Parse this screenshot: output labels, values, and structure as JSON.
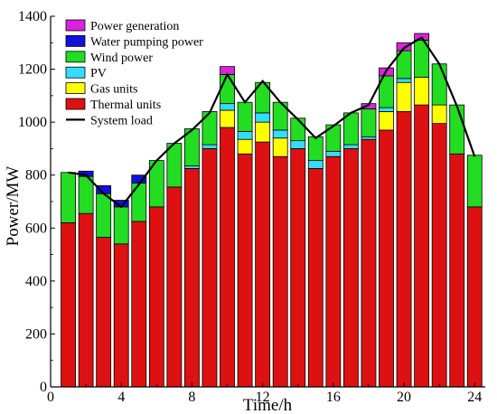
{
  "chart_data": {
    "type": "bar",
    "stacked": true,
    "xlabel": "Time/h",
    "ylabel": "Power/MW",
    "xlim": [
      0,
      24.6
    ],
    "ylim": [
      0,
      1400
    ],
    "x_ticks": [
      0,
      4,
      8,
      12,
      16,
      20,
      24
    ],
    "y_ticks": [
      0,
      200,
      400,
      600,
      800,
      1000,
      1200,
      1400
    ],
    "grid": false,
    "legend_position": "top-left",
    "hours": [
      1,
      2,
      3,
      4,
      5,
      6,
      7,
      8,
      9,
      10,
      11,
      12,
      13,
      14,
      15,
      16,
      17,
      18,
      19,
      20,
      21,
      22,
      23,
      24
    ],
    "series": [
      {
        "name": "Thermal units",
        "color": "#dd1111",
        "values": [
          620,
          655,
          565,
          540,
          625,
          680,
          755,
          825,
          900,
          980,
          880,
          925,
          870,
          900,
          825,
          870,
          900,
          935,
          970,
          1040,
          1065,
          995,
          880,
          680
        ]
      },
      {
        "name": "Gas units",
        "color": "#ffff00",
        "values": [
          0,
          0,
          0,
          0,
          0,
          0,
          0,
          0,
          0,
          65,
          55,
          75,
          70,
          0,
          0,
          0,
          0,
          0,
          70,
          110,
          105,
          70,
          0,
          0
        ]
      },
      {
        "name": "PV",
        "color": "#33ddff",
        "values": [
          0,
          0,
          0,
          0,
          0,
          0,
          0,
          10,
          15,
          25,
          30,
          35,
          30,
          30,
          30,
          20,
          15,
          10,
          15,
          15,
          0,
          0,
          0,
          0
        ]
      },
      {
        "name": "Wind power",
        "color": "#22dd22",
        "values": [
          190,
          140,
          165,
          140,
          145,
          175,
          165,
          140,
          125,
          110,
          110,
          115,
          105,
          85,
          90,
          100,
          120,
          105,
          120,
          105,
          140,
          155,
          185,
          195
        ]
      },
      {
        "name": "Water pumping power",
        "color": "#1111dd",
        "values": [
          0,
          20,
          30,
          25,
          30,
          0,
          0,
          0,
          0,
          0,
          0,
          0,
          0,
          0,
          0,
          0,
          0,
          0,
          0,
          0,
          0,
          0,
          0,
          0
        ]
      },
      {
        "name": "Power generation",
        "color": "#dd22dd",
        "values": [
          0,
          0,
          0,
          0,
          0,
          0,
          0,
          0,
          0,
          30,
          0,
          0,
          0,
          0,
          0,
          0,
          0,
          20,
          30,
          30,
          25,
          0,
          0,
          0
        ]
      }
    ],
    "system_load": {
      "name": "System load",
      "color": "#000000",
      "values": [
        810,
        800,
        730,
        680,
        765,
        855,
        920,
        970,
        1035,
        1180,
        1075,
        1155,
        1075,
        1010,
        940,
        985,
        1035,
        1065,
        1195,
        1280,
        1320,
        1220,
        1060,
        870
      ]
    }
  }
}
